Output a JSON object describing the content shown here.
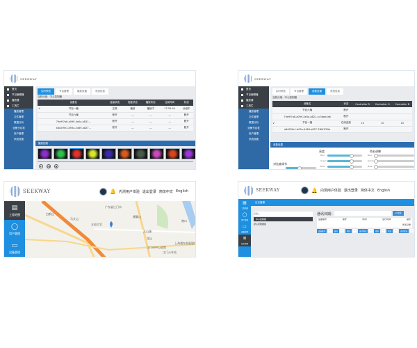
{
  "brand": {
    "name": "SEEKWAY",
    "tagline": "赛威·新动力"
  },
  "panel1": {
    "sidebar": [
      {
        "label": "首页",
        "dark": true
      },
      {
        "label": "节目编辑器",
        "dark": true
      },
      {
        "label": "播放器",
        "dark": true
      },
      {
        "label": "工具栏",
        "dark": true
      },
      {
        "label": "播放管理"
      },
      {
        "label": "文件管理"
      },
      {
        "label": "数据分析"
      },
      {
        "label": "设备节目表"
      },
      {
        "label": "用户管理"
      },
      {
        "label": "系统设置"
      }
    ],
    "tabs": [
      "实时预览",
      "节目管理",
      "播放设置",
      "系统信息"
    ],
    "breadcrumb": "当前分组：中心控制器",
    "columns": [
      "",
      "设备名",
      "连接状态",
      "亮度状态",
      "播放状态",
      "当前时间",
      "状态"
    ],
    "rows": [
      [
        "✔",
        "节目一播",
        "正常",
        "播放",
        "播放中",
        "17:55:44",
        "分组中"
      ],
      [
        "",
        "节目六播",
        "断开",
        "—",
        "—",
        "—",
        "断开"
      ],
      [
        "",
        "79e9f7a6-a099-4e0a-b821...",
        "断开",
        "—",
        "—",
        "—",
        "断开"
      ],
      [
        "",
        "a6d2f9e1-b93a-4469-a827...",
        "断开",
        "—",
        "—",
        "—",
        "断开"
      ]
    ],
    "preview_title": "播放控制",
    "thumb_colors": [
      "#8a2fc9",
      "#2fbf4a",
      "#e0322b",
      "#d8e62a",
      "#3a2aa8",
      "#d95a1a",
      "#4a5a48",
      "#c84ab8",
      "#d8461e",
      "#9a36d8"
    ],
    "controls": [
      "play-icon",
      "pause-icon",
      "stop-icon"
    ]
  },
  "panel2": {
    "sidebar": [
      {
        "label": "首页",
        "dark": true
      },
      {
        "label": "节目编辑器",
        "dark": true
      },
      {
        "label": "播放器",
        "dark": true
      },
      {
        "label": "工具栏",
        "dark": true
      },
      {
        "label": "播放管理"
      },
      {
        "label": "文件管理"
      },
      {
        "label": "数据分析"
      },
      {
        "label": "设备节目表"
      },
      {
        "label": "用户管理"
      },
      {
        "label": "系统设置"
      }
    ],
    "tabs": [
      "实时预览",
      "节目管理",
      "参数设置",
      "系统信息"
    ],
    "breadcrumb": "当前分组：中心控制器",
    "columns": [
      "",
      "设备名",
      "状态",
      "Controller R",
      "Controller G",
      "Controller B"
    ],
    "rows": [
      [
        "",
        "节目六播",
        "断开",
        "",
        "",
        ""
      ],
      [
        "",
        "79e9f7a6-a099-4e0a-b821-cc3bae4e6",
        "断开",
        "",
        "",
        ""
      ],
      [
        "✔",
        "节目一播",
        "在线连接",
        "10",
        "10",
        "10"
      ],
      [
        "",
        "a6d2f9e1-b93a-4469-a827-7f6d7f09a",
        "断开",
        "",
        "",
        ""
      ]
    ],
    "settings_title": "参数设置",
    "brightness_label": "亮度",
    "color_label": "色彩调整",
    "left_label": "对比度调节",
    "channels": [
      "Red",
      "Green",
      "Blue"
    ],
    "left_value": 0.45,
    "brightness_values": [
      0.7,
      0.7,
      0.7
    ],
    "color_values": [
      0.0,
      0.0,
      0.0
    ]
  },
  "panel3": {
    "header_links": [
      "内测用户体验",
      "退出登录",
      "简体中文",
      "English"
    ],
    "sidebar": [
      {
        "label": "工程地图",
        "icon": "document-icon",
        "dark": true
      },
      {
        "label": "用户管理",
        "icon": "user-icon"
      },
      {
        "label": "设备管理",
        "icon": "monitor-icon"
      }
    ],
    "map_labels": [
      "白鹤山",
      "马头山",
      "五邑大学",
      "广东省江门市",
      "横雾山",
      "大山塘",
      "龙山",
      "江门市中心医院",
      "上海浦东发展银行",
      "港口",
      "江门火车站"
    ]
  },
  "panel4": {
    "header_links": [
      "内测用户体验",
      "退出登录",
      "简体中文",
      "English"
    ],
    "sidebar": [
      {
        "label": "工程地图",
        "icon": "document-icon"
      },
      {
        "label": "用户管理",
        "icon": "user-icon"
      },
      {
        "label": "设备管理",
        "icon": "monitor-icon"
      },
      {
        "label": "日志管理",
        "icon": "database-icon",
        "dark": true
      }
    ],
    "topbar": "日志管理",
    "search_placeholder": "请输入",
    "tree_selected": "中心控制器",
    "tree_child": "默认控制器组",
    "date_label": "通讯日期：",
    "search_button": "Q 搜索",
    "columns": [
      "设备编号",
      "编号",
      "时间",
      "运行时间",
      "操作"
    ],
    "row_note": "暂无记录",
    "filters": [
      "设备编号",
      "编号",
      "时间",
      "运行时间",
      "操作",
      "状态",
      "运行状态"
    ]
  },
  "colors": {
    "primary": "#2f6aa6",
    "accent": "#1f8fe0",
    "dark": "#3b4046"
  }
}
